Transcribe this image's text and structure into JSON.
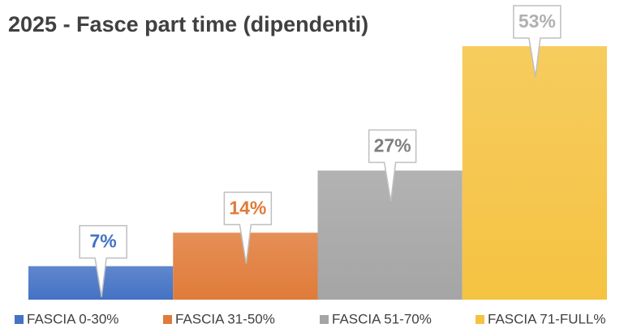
{
  "chart_data": {
    "type": "bar",
    "title": "2025 - Fasce part time (dipendenti)",
    "series": [
      {
        "name": "FASCIA 0-30%",
        "color": "#4472c4",
        "values": [
          7
        ],
        "value_labels": [
          "7%"
        ]
      },
      {
        "name": "FASCIA 31-50%",
        "color": "#e07b39",
        "values": [
          14
        ],
        "value_labels": [
          "14%"
        ]
      },
      {
        "name": "FASCIA 51-70%",
        "color": "#a5a5a5",
        "values": [
          27
        ],
        "value_labels": [
          "27%"
        ]
      },
      {
        "name": "FASCIA 71-FULL%",
        "color": "#f5c342",
        "values": [
          53
        ],
        "value_labels": [
          "53%"
        ]
      }
    ]
  }
}
